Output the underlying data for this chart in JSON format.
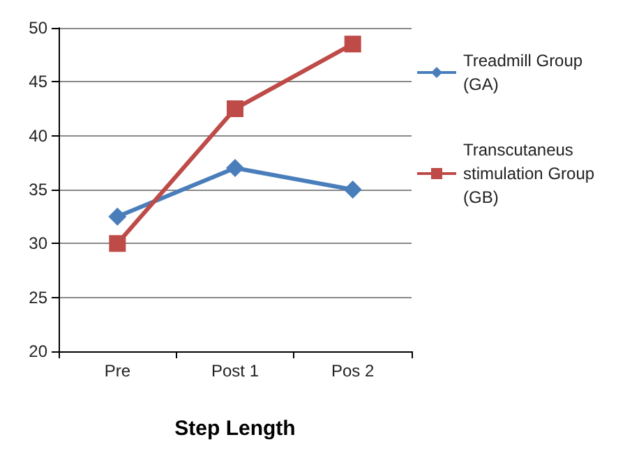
{
  "chart_data": {
    "type": "line",
    "xlabel": "Step Length",
    "categories": [
      "Pre",
      "Post 1",
      "Pos 2"
    ],
    "series": [
      {
        "name": "Treadmill Group (GA)",
        "color": "#4a7ebb",
        "marker": "diamond",
        "values": [
          32.5,
          37,
          35
        ]
      },
      {
        "name": "Transcutaneus stimulation Group (GB)",
        "color": "#be4b48",
        "marker": "square",
        "values": [
          30,
          42.5,
          48.5
        ]
      }
    ],
    "ylim": [
      20,
      50
    ],
    "yticks": [
      20,
      25,
      30,
      35,
      40,
      45,
      50
    ],
    "grid": "y",
    "legend": "right"
  }
}
